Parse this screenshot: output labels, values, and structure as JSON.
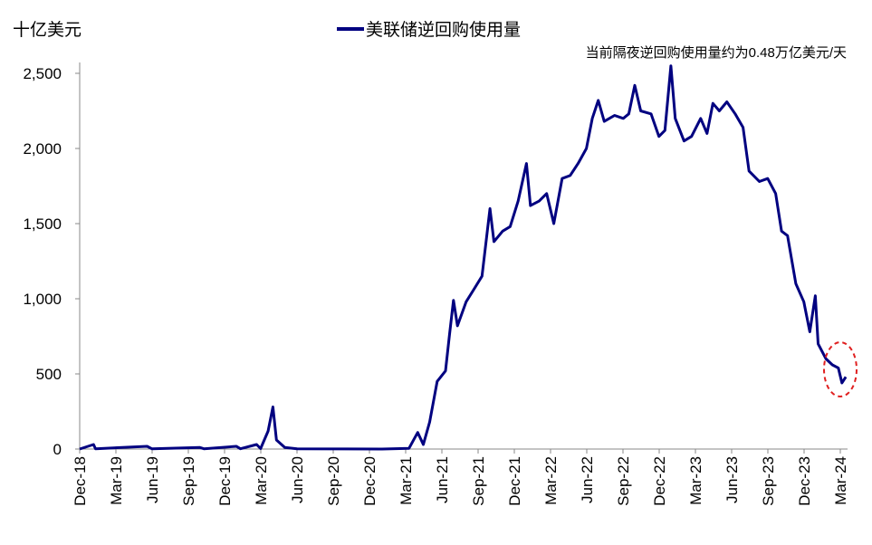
{
  "chart_data": {
    "type": "line",
    "title": "",
    "ylabel": "十亿美元",
    "xlabel": "",
    "annotation": "当前隔夜逆回购使用量约为0.48万亿美元/天",
    "ylim": [
      0,
      2500
    ],
    "yticks": [
      0,
      500,
      1000,
      1500,
      2000,
      2500
    ],
    "ytick_labels": [
      "0",
      "500",
      "1,000",
      "1,500",
      "2,000",
      "2,500"
    ],
    "xtick_labels": [
      "Dec-18",
      "Mar-19",
      "Jun-19",
      "Sep-19",
      "Dec-19",
      "Mar-20",
      "Jun-20",
      "Sep-20",
      "Dec-20",
      "Mar-21",
      "Jun-21",
      "Sep-21",
      "Dec-21",
      "Mar-22",
      "Jun-22",
      "Sep-22",
      "Dec-22",
      "Mar-23",
      "Jun-23",
      "Sep-23",
      "Dec-23",
      "Mar-24"
    ],
    "xlim": [
      "2018-12-01",
      "2024-03-01"
    ],
    "grid": false,
    "legend": "top-center",
    "highlight": "red dashed ellipse around latest values (Mar-24)",
    "colors": {
      "series": "#000080",
      "highlight": "#e02020"
    },
    "series": [
      {
        "name": "美联储逆回购使用量",
        "points": [
          [
            "2018-12-01",
            0
          ],
          [
            "2019-01-05",
            30
          ],
          [
            "2019-01-10",
            2
          ],
          [
            "2019-05-20",
            18
          ],
          [
            "2019-06-01",
            2
          ],
          [
            "2019-09-30",
            10
          ],
          [
            "2019-10-10",
            2
          ],
          [
            "2019-12-31",
            18
          ],
          [
            "2020-01-10",
            2
          ],
          [
            "2020-02-20",
            30
          ],
          [
            "2020-03-01",
            3
          ],
          [
            "2020-03-20",
            120
          ],
          [
            "2020-04-01",
            280
          ],
          [
            "2020-04-10",
            60
          ],
          [
            "2020-05-01",
            10
          ],
          [
            "2020-06-01",
            1
          ],
          [
            "2021-01-01",
            0
          ],
          [
            "2021-03-10",
            5
          ],
          [
            "2021-04-01",
            110
          ],
          [
            "2021-04-15",
            30
          ],
          [
            "2021-05-01",
            180
          ],
          [
            "2021-05-20",
            450
          ],
          [
            "2021-06-10",
            520
          ],
          [
            "2021-06-20",
            760
          ],
          [
            "2021-06-30",
            990
          ],
          [
            "2021-07-10",
            820
          ],
          [
            "2021-08-01",
            980
          ],
          [
            "2021-08-20",
            1060
          ],
          [
            "2021-09-10",
            1150
          ],
          [
            "2021-09-30",
            1600
          ],
          [
            "2021-10-10",
            1380
          ],
          [
            "2021-11-01",
            1450
          ],
          [
            "2021-11-20",
            1480
          ],
          [
            "2021-12-10",
            1650
          ],
          [
            "2021-12-31",
            1900
          ],
          [
            "2022-01-10",
            1620
          ],
          [
            "2022-02-01",
            1650
          ],
          [
            "2022-02-20",
            1700
          ],
          [
            "2022-03-10",
            1500
          ],
          [
            "2022-03-31",
            1800
          ],
          [
            "2022-04-20",
            1820
          ],
          [
            "2022-05-10",
            1900
          ],
          [
            "2022-05-31",
            2000
          ],
          [
            "2022-06-15",
            2200
          ],
          [
            "2022-06-30",
            2320
          ],
          [
            "2022-07-15",
            2180
          ],
          [
            "2022-08-10",
            2220
          ],
          [
            "2022-09-01",
            2200
          ],
          [
            "2022-09-15",
            2230
          ],
          [
            "2022-09-30",
            2420
          ],
          [
            "2022-10-15",
            2250
          ],
          [
            "2022-11-10",
            2230
          ],
          [
            "2022-11-30",
            2080
          ],
          [
            "2022-12-15",
            2120
          ],
          [
            "2022-12-30",
            2550
          ],
          [
            "2023-01-10",
            2200
          ],
          [
            "2023-02-01",
            2050
          ],
          [
            "2023-02-20",
            2080
          ],
          [
            "2023-03-15",
            2200
          ],
          [
            "2023-03-31",
            2100
          ],
          [
            "2023-04-15",
            2300
          ],
          [
            "2023-05-01",
            2250
          ],
          [
            "2023-05-20",
            2310
          ],
          [
            "2023-06-10",
            2230
          ],
          [
            "2023-06-30",
            2140
          ],
          [
            "2023-07-15",
            1850
          ],
          [
            "2023-08-10",
            1780
          ],
          [
            "2023-08-31",
            1800
          ],
          [
            "2023-09-20",
            1700
          ],
          [
            "2023-10-05",
            1450
          ],
          [
            "2023-10-20",
            1420
          ],
          [
            "2023-11-10",
            1100
          ],
          [
            "2023-11-30",
            980
          ],
          [
            "2023-12-15",
            780
          ],
          [
            "2023-12-29",
            1020
          ],
          [
            "2024-01-05",
            700
          ],
          [
            "2024-01-25",
            600
          ],
          [
            "2024-02-10",
            560
          ],
          [
            "2024-02-25",
            540
          ],
          [
            "2024-03-05",
            440
          ],
          [
            "2024-03-15",
            480
          ]
        ]
      }
    ]
  }
}
